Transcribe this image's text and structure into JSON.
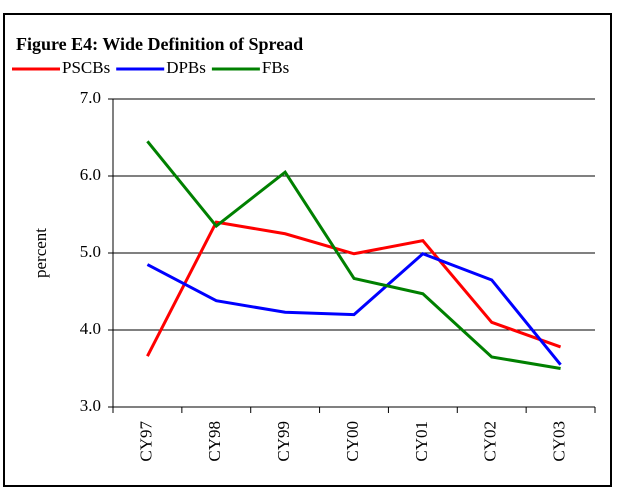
{
  "chart_data": {
    "type": "line",
    "title": "Figure E4: Wide Definition of Spread",
    "y_label": "percent",
    "categories": [
      "CY97",
      "CY98",
      "CY99",
      "CY00",
      "CY01",
      "CY02",
      "CY03"
    ],
    "series": [
      {
        "name": "PSCBs",
        "color": "#ff0000",
        "values": [
          3.66,
          5.4,
          5.25,
          4.99,
          5.16,
          4.1,
          3.78
        ]
      },
      {
        "name": "DPBs",
        "color": "#0000ff",
        "values": [
          4.85,
          4.38,
          4.23,
          4.2,
          4.99,
          4.65,
          3.55
        ]
      },
      {
        "name": "FBs",
        "color": "#008000",
        "values": [
          6.45,
          5.35,
          6.05,
          4.67,
          4.47,
          3.65,
          3.5
        ]
      }
    ],
    "ylim": [
      3,
      7
    ],
    "yticks": [
      {
        "value": 3,
        "label": "3.0"
      },
      {
        "value": 4,
        "label": "4.0"
      },
      {
        "value": 5,
        "label": "5.0"
      },
      {
        "value": 6,
        "label": "6.0"
      },
      {
        "value": 7,
        "label": "7.0"
      }
    ],
    "grid": true,
    "legend": "top"
  }
}
